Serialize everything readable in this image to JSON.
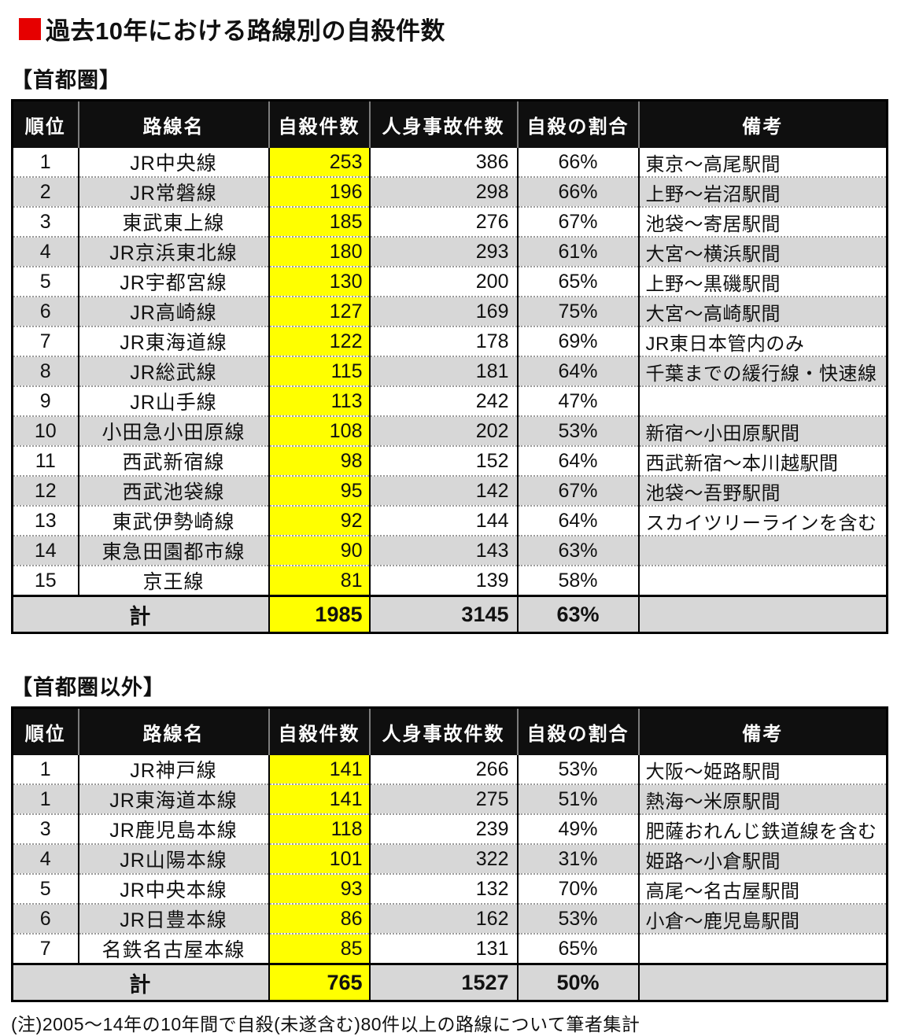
{
  "page": {
    "title": "過去10年における路線別の自殺件数",
    "footnote": "(注)2005〜14年の10年間で自殺(未遂含む)80件以上の路線について筆者集計"
  },
  "colors": {
    "accent_red": "#e60000",
    "highlight_yellow": "#ffff00",
    "stripe_gray": "#d7d7d7",
    "header_bg": "#0f0f0f"
  },
  "columns": [
    "順位",
    "路線名",
    "自殺件数",
    "人身事故件数",
    "自殺の割合",
    "備考"
  ],
  "tables": [
    {
      "section": "【首都圏】",
      "rows": [
        [
          "1",
          "JR中央線",
          "253",
          "386",
          "66%",
          "東京〜高尾駅間"
        ],
        [
          "2",
          "JR常磐線",
          "196",
          "298",
          "66%",
          "上野〜岩沼駅間"
        ],
        [
          "3",
          "東武東上線",
          "185",
          "276",
          "67%",
          "池袋〜寄居駅間"
        ],
        [
          "4",
          "JR京浜東北線",
          "180",
          "293",
          "61%",
          "大宮〜横浜駅間"
        ],
        [
          "5",
          "JR宇都宮線",
          "130",
          "200",
          "65%",
          "上野〜黒磯駅間"
        ],
        [
          "6",
          "JR高崎線",
          "127",
          "169",
          "75%",
          "大宮〜高崎駅間"
        ],
        [
          "7",
          "JR東海道線",
          "122",
          "178",
          "69%",
          "JR東日本管内のみ"
        ],
        [
          "8",
          "JR総武線",
          "115",
          "181",
          "64%",
          "千葉までの緩行線・快速線"
        ],
        [
          "9",
          "JR山手線",
          "113",
          "242",
          "47%",
          ""
        ],
        [
          "10",
          "小田急小田原線",
          "108",
          "202",
          "53%",
          "新宿〜小田原駅間"
        ],
        [
          "11",
          "西武新宿線",
          "98",
          "152",
          "64%",
          "西武新宿〜本川越駅間"
        ],
        [
          "12",
          "西武池袋線",
          "95",
          "142",
          "67%",
          "池袋〜吾野駅間"
        ],
        [
          "13",
          "東武伊勢崎線",
          "92",
          "144",
          "64%",
          "スカイツリーラインを含む"
        ],
        [
          "14",
          "東急田園都市線",
          "90",
          "143",
          "63%",
          ""
        ],
        [
          "15",
          "京王線",
          "81",
          "139",
          "58%",
          ""
        ]
      ],
      "total": [
        "計",
        "1985",
        "3145",
        "63%",
        ""
      ]
    },
    {
      "section": "【首都圏以外】",
      "rows": [
        [
          "1",
          "JR神戸線",
          "141",
          "266",
          "53%",
          "大阪〜姫路駅間"
        ],
        [
          "1",
          "JR東海道本線",
          "141",
          "275",
          "51%",
          "熱海〜米原駅間"
        ],
        [
          "3",
          "JR鹿児島本線",
          "118",
          "239",
          "49%",
          "肥薩おれんじ鉄道線を含む"
        ],
        [
          "4",
          "JR山陽本線",
          "101",
          "322",
          "31%",
          "姫路〜小倉駅間"
        ],
        [
          "5",
          "JR中央本線",
          "93",
          "132",
          "70%",
          "高尾〜名古屋駅間"
        ],
        [
          "6",
          "JR日豊本線",
          "86",
          "162",
          "53%",
          "小倉〜鹿児島駅間"
        ],
        [
          "7",
          "名鉄名古屋本線",
          "85",
          "131",
          "65%",
          ""
        ]
      ],
      "total": [
        "計",
        "765",
        "1527",
        "50%",
        ""
      ]
    }
  ]
}
